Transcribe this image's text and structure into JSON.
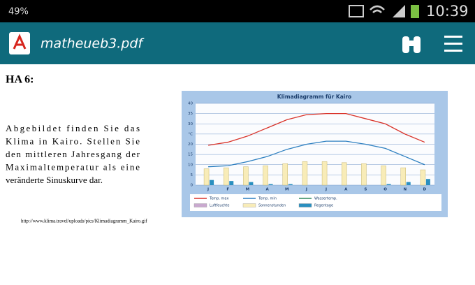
{
  "status_bar": {
    "battery": "49%",
    "time": "10:39"
  },
  "app_bar": {
    "title": "matheueb3.pdf"
  },
  "document": {
    "heading": "HA 6:",
    "paragraph": [
      "Abgebildet finden Sie das",
      "Klima in Kairo. Stellen Sie",
      "den mittleren Jahresgang der",
      "Maximaltemperatur als eine",
      "veränderte Sinuskurve dar."
    ],
    "source": "http://www.klima.travel/uploads/pics/Klimadiagramm_Kairo.gif"
  },
  "chart_data": {
    "type": "bar",
    "title": "Klimadiagramm für Kairo",
    "categories": [
      "J",
      "F",
      "M",
      "A",
      "M",
      "J",
      "J",
      "A",
      "S",
      "O",
      "N",
      "D"
    ],
    "ylim": [
      0,
      40
    ],
    "yticks": [
      0,
      5,
      10,
      15,
      20,
      {
        "value": 25,
        "label": "°C"
      },
      30,
      35,
      40
    ],
    "grid": true,
    "series": [
      {
        "name": "Temp. max",
        "color": "#d9342b",
        "kind": "line",
        "values": [
          19.5,
          21,
          24,
          28,
          32,
          34.5,
          35,
          35,
          32.5,
          30,
          25,
          21
        ]
      },
      {
        "name": "Temp. min",
        "color": "#2c7fc0",
        "kind": "line",
        "values": [
          9,
          9.5,
          11.5,
          14,
          17.5,
          20,
          21.5,
          21.5,
          20,
          18,
          14,
          10
        ]
      },
      {
        "name": "Sonnenstunden",
        "color": "#f8ecb8",
        "kind": "bar",
        "values": [
          8,
          8.5,
          9,
          9.5,
          10.5,
          11.5,
          11.5,
          11,
          10.5,
          9.5,
          8.5,
          7.5
        ]
      },
      {
        "name": "Regentage",
        "color": "#2a8fbf",
        "kind": "bar",
        "values": [
          2.5,
          2,
          1.5,
          0.5,
          0.5,
          0,
          0,
          0,
          0,
          0.5,
          1.5,
          3
        ]
      }
    ],
    "legend_extra": [
      {
        "name": "Luftfeuchte",
        "color": "#c9a9cf"
      },
      {
        "name": "Wassertemp.",
        "color": "#2e8a5c"
      }
    ]
  }
}
